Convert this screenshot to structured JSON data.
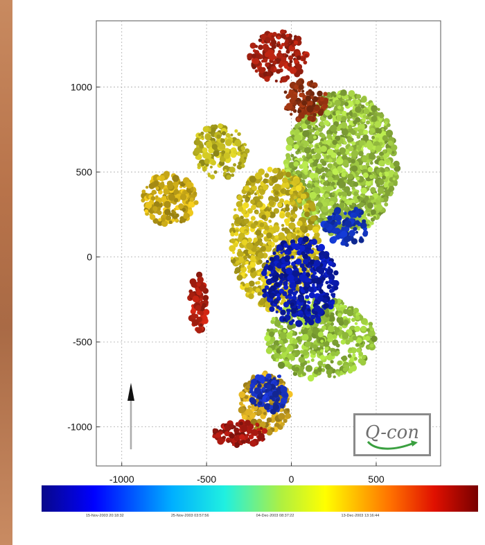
{
  "chart_data": {
    "type": "scatter",
    "title": "",
    "xlabel": "",
    "ylabel": "",
    "xlim": [
      -1150,
      880
    ],
    "ylim": [
      -1230,
      1390
    ],
    "xticks": [
      -1000,
      -500,
      0,
      500
    ],
    "yticks": [
      1000,
      500,
      0,
      -500,
      -1000
    ],
    "xtick_labels": [
      "-1000",
      "-500",
      "0",
      "500"
    ],
    "ytick_labels": [
      "1000",
      "500",
      "0",
      "-500",
      "-1000"
    ],
    "grid": true,
    "color_scale": [
      "#0a0a8c",
      "#0060ff",
      "#00d0ff",
      "#80e040",
      "#ffe000",
      "#ff6000",
      "#8b0000"
    ],
    "colorbar_labels": [
      "15-Nov-2003 20:18:32",
      "25-Nov-2003 03:57:56",
      "04-Dec-2003 08:37:22",
      "13-Dec-2003 13:16:44"
    ],
    "regions": [
      {
        "shape": "ellipse",
        "cx": 300,
        "cy": 550,
        "rx": 330,
        "ry": 420,
        "color": "#98c040",
        "count": 1200
      },
      {
        "shape": "ellipse",
        "cx": -100,
        "cy": 100,
        "rx": 260,
        "ry": 420,
        "color": "#c6b41e",
        "count": 700
      },
      {
        "shape": "ellipse",
        "cx": -720,
        "cy": 340,
        "rx": 160,
        "ry": 150,
        "color": "#c8a818",
        "count": 200
      },
      {
        "shape": "ellipse",
        "cx": -420,
        "cy": 620,
        "rx": 160,
        "ry": 160,
        "color": "#b8b020",
        "count": 160
      },
      {
        "shape": "ellipse",
        "cx": 170,
        "cy": -480,
        "rx": 320,
        "ry": 240,
        "color": "#94c03c",
        "count": 500
      },
      {
        "shape": "ellipse",
        "cx": -150,
        "cy": -860,
        "rx": 150,
        "ry": 180,
        "color": "#c8a020",
        "count": 200
      },
      {
        "shape": "ellipse",
        "cx": -80,
        "cy": 1180,
        "rx": 170,
        "ry": 150,
        "color": "#a02010",
        "count": 160
      },
      {
        "shape": "ellipse",
        "cx": 80,
        "cy": 920,
        "rx": 130,
        "ry": 120,
        "color": "#8c3010",
        "count": 100
      },
      {
        "shape": "ellipse",
        "cx": -550,
        "cy": -280,
        "rx": 50,
        "ry": 180,
        "color": "#b02010",
        "count": 80
      },
      {
        "shape": "ellipse",
        "cx": -300,
        "cy": -1040,
        "rx": 160,
        "ry": 70,
        "color": "#a01810",
        "count": 100
      },
      {
        "shape": "ellipse",
        "cx": 50,
        "cy": -150,
        "rx": 220,
        "ry": 260,
        "color": "#0a1aa8",
        "count": 400
      },
      {
        "shape": "ellipse",
        "cx": 320,
        "cy": 180,
        "rx": 130,
        "ry": 120,
        "color": "#1030b0",
        "count": 90
      },
      {
        "shape": "ellipse",
        "cx": -130,
        "cy": -800,
        "rx": 110,
        "ry": 120,
        "color": "#1830b8",
        "count": 110
      }
    ]
  },
  "logo": {
    "text": "Q-con"
  }
}
